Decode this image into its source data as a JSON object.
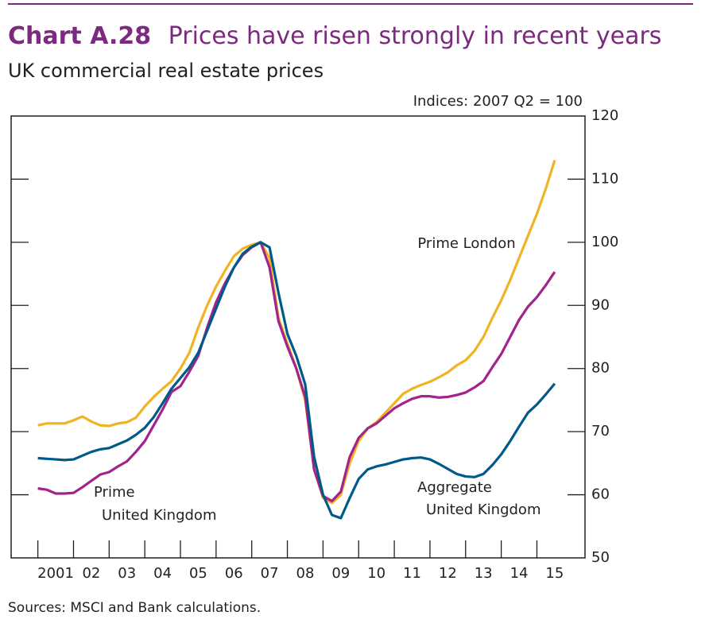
{
  "chart_data": {
    "type": "line",
    "chart_number": "Chart A.28",
    "title": "Prices have risen strongly in recent years",
    "subtitle": "UK commercial real estate prices",
    "y_axis_label": "Indices:  2007 Q2 = 100",
    "source": "Sources:  MSCI and Bank calculations.",
    "x": [
      2001,
      2001.25,
      2001.5,
      2001.75,
      2002,
      2002.25,
      2002.5,
      2002.75,
      2003,
      2003.25,
      2003.5,
      2003.75,
      2004,
      2004.25,
      2004.5,
      2004.75,
      2005,
      2005.25,
      2005.5,
      2005.75,
      2006,
      2006.25,
      2006.5,
      2006.75,
      2007,
      2007.25,
      2007.5,
      2007.75,
      2008,
      2008.25,
      2008.5,
      2008.75,
      2009,
      2009.25,
      2009.5,
      2009.75,
      2010,
      2010.25,
      2010.5,
      2010.75,
      2011,
      2011.25,
      2011.5,
      2011.75,
      2012,
      2012.25,
      2012.5,
      2012.75,
      2013,
      2013.25,
      2013.5,
      2013.75,
      2014,
      2014.25,
      2014.5,
      2014.75,
      2015,
      2015.25,
      2015.5
    ],
    "xlim": [
      2000.25,
      2016.35
    ],
    "xticks": [
      2001,
      2002,
      2003,
      2004,
      2005,
      2006,
      2007,
      2008,
      2009,
      2010,
      2011,
      2012,
      2013,
      2014,
      2015
    ],
    "xlabels": [
      {
        "value": 2001.5,
        "label": "2001"
      },
      {
        "value": 2002.5,
        "label": "02"
      },
      {
        "value": 2003.5,
        "label": "03"
      },
      {
        "value": 2004.5,
        "label": "04"
      },
      {
        "value": 2005.5,
        "label": "05"
      },
      {
        "value": 2006.5,
        "label": "06"
      },
      {
        "value": 2007.5,
        "label": "07"
      },
      {
        "value": 2008.5,
        "label": "08"
      },
      {
        "value": 2009.5,
        "label": "09"
      },
      {
        "value": 2010.5,
        "label": "10"
      },
      {
        "value": 2011.5,
        "label": "11"
      },
      {
        "value": 2012.5,
        "label": "12"
      },
      {
        "value": 2013.5,
        "label": "13"
      },
      {
        "value": 2014.5,
        "label": "14"
      },
      {
        "value": 2015.5,
        "label": "15"
      }
    ],
    "ylim": [
      50,
      120
    ],
    "yticks": [
      50,
      60,
      70,
      80,
      90,
      100,
      110,
      120
    ],
    "series": [
      {
        "name": [
          "Prime London"
        ],
        "color": "#f0b323",
        "values": [
          71.0,
          71.3,
          71.3,
          71.3,
          71.8,
          72.4,
          71.6,
          71.0,
          70.9,
          71.3,
          71.5,
          72.2,
          74.0,
          75.5,
          76.8,
          78.0,
          80.0,
          82.5,
          86.5,
          90.0,
          93.0,
          95.5,
          97.8,
          99.0,
          99.6,
          100,
          97.5,
          88,
          84,
          80,
          75,
          64,
          59.5,
          58.7,
          60,
          65,
          68.5,
          70.5,
          71.5,
          73,
          74.5,
          76,
          76.8,
          77.4,
          77.9,
          78.6,
          79.4,
          80.5,
          81.3,
          82.8,
          85,
          88,
          90.8,
          94,
          97.5,
          101,
          104.5,
          108.5,
          113
        ]
      },
      {
        "name": [
          "Prime",
          "United Kingdom"
        ],
        "color": "#a2238d",
        "values": [
          61.0,
          60.8,
          60.2,
          60.2,
          60.3,
          61.2,
          62.2,
          63.2,
          63.6,
          64.5,
          65.3,
          66.8,
          68.5,
          71,
          73.5,
          76.3,
          77.2,
          79.5,
          82,
          86.5,
          90.5,
          93.5,
          96,
          98,
          99.2,
          100,
          96,
          87.5,
          83.5,
          80,
          75.5,
          64,
          59.8,
          59,
          60.5,
          66,
          69,
          70.5,
          71.3,
          72.5,
          73.7,
          74.5,
          75.2,
          75.6,
          75.6,
          75.4,
          75.5,
          75.8,
          76.2,
          77,
          78,
          80.2,
          82.3,
          85,
          87.7,
          89.8,
          91.3,
          93.2,
          95.3
        ]
      },
      {
        "name": [
          "Aggregate",
          "United Kingdom"
        ],
        "color": "#005a87",
        "values": [
          65.8,
          65.7,
          65.6,
          65.5,
          65.6,
          66.2,
          66.8,
          67.2,
          67.4,
          68,
          68.6,
          69.5,
          70.6,
          72.3,
          74.5,
          76.8,
          78.5,
          80.2,
          82.5,
          86,
          89.5,
          93,
          96,
          98.2,
          99.3,
          100,
          99.2,
          92,
          85.5,
          82,
          77.5,
          66,
          60,
          56.8,
          56.3,
          59.5,
          62.5,
          64,
          64.5,
          64.8,
          65.2,
          65.6,
          65.8,
          65.9,
          65.6,
          64.9,
          64.1,
          63.3,
          62.9,
          62.8,
          63.3,
          64.7,
          66.4,
          68.5,
          70.8,
          73,
          74.3,
          75.9,
          77.6
        ]
      }
    ]
  }
}
